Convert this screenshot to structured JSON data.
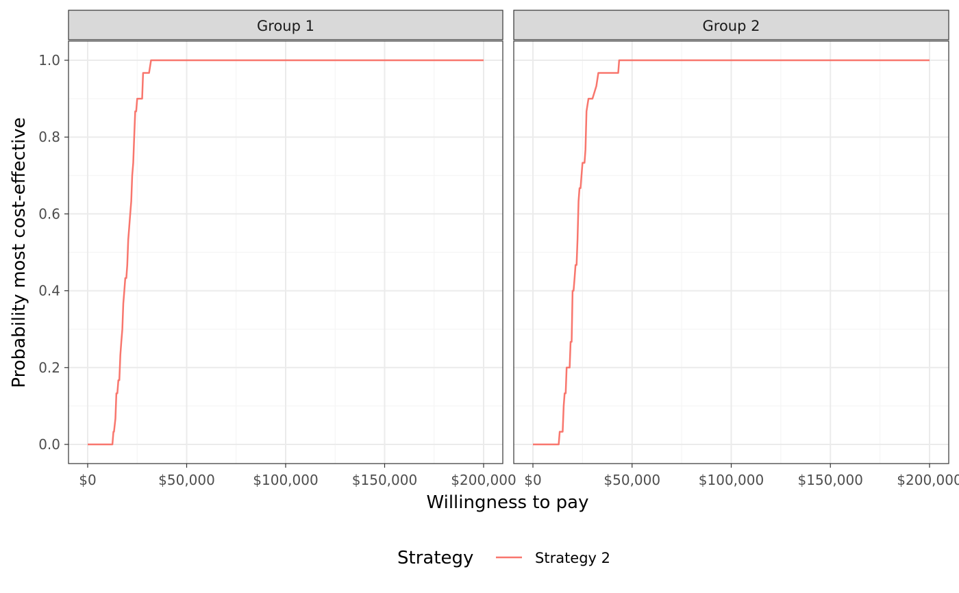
{
  "chart_data": {
    "type": "line",
    "xlabel": "Willingness to pay",
    "ylabel": "Probability most cost-effective",
    "xlim": [
      0,
      200000
    ],
    "ylim": [
      0,
      1
    ],
    "x_ticks": [
      0,
      50000,
      100000,
      150000,
      200000
    ],
    "x_tick_labels": [
      "$0",
      "$50,000",
      "$100,000",
      "$150,000",
      "$200,000"
    ],
    "y_ticks": [
      0,
      0.2,
      0.4,
      0.6,
      0.8,
      1.0
    ],
    "y_tick_labels": [
      "0.0",
      "0.2",
      "0.4",
      "0.6",
      "0.8",
      "1.0"
    ],
    "grid": true,
    "legend": {
      "title": "Strategy",
      "position": "bottom",
      "entries": [
        "Strategy 2"
      ]
    },
    "colors": {
      "series": "#f8766d",
      "strip": "#d9d9d9",
      "grid_major": "#ebebeb",
      "grid_minor": "#f5f5f5",
      "border": "#333333"
    },
    "panels": [
      {
        "title": "Group 1",
        "series": [
          {
            "name": "Strategy 2",
            "x": [
              0,
              12500,
              13000,
              13300,
              14000,
              14500,
              15000,
              15500,
              16000,
              16500,
              17000,
              17500,
              18000,
              18500,
              19000,
              19500,
              20000,
              20500,
              21000,
              21500,
              22000,
              22500,
              23000,
              23500,
              24000,
              24500,
              25000,
              25500,
              27500,
              28000,
              30000,
              31000,
              32000,
              200000
            ],
            "y": [
              0,
              0,
              0.033,
              0.033,
              0.067,
              0.133,
              0.133,
              0.167,
              0.167,
              0.233,
              0.267,
              0.3,
              0.367,
              0.4,
              0.433,
              0.433,
              0.467,
              0.533,
              0.567,
              0.6,
              0.633,
              0.7,
              0.733,
              0.8,
              0.867,
              0.867,
              0.9,
              0.9,
              0.9,
              0.967,
              0.967,
              0.967,
              1.0,
              1.0
            ]
          }
        ]
      },
      {
        "title": "Group 2",
        "series": [
          {
            "name": "Strategy 2",
            "x": [
              0,
              13000,
              13500,
              15000,
              15500,
              16000,
              16500,
              17000,
              17500,
              18500,
              19000,
              19500,
              20000,
              20500,
              21000,
              21500,
              22000,
              22500,
              23000,
              23500,
              24000,
              24500,
              25000,
              25500,
              26000,
              26500,
              27000,
              28000,
              28500,
              29000,
              30000,
              32000,
              33000,
              34000,
              36000,
              38000,
              43000,
              43500,
              200000
            ],
            "y": [
              0,
              0,
              0.033,
              0.033,
              0.1,
              0.133,
              0.133,
              0.2,
              0.2,
              0.2,
              0.267,
              0.267,
              0.4,
              0.4,
              0.433,
              0.467,
              0.467,
              0.533,
              0.633,
              0.667,
              0.667,
              0.7,
              0.733,
              0.733,
              0.733,
              0.767,
              0.867,
              0.9,
              0.9,
              0.9,
              0.9,
              0.933,
              0.967,
              0.967,
              0.967,
              0.967,
              0.967,
              1.0,
              1.0
            ]
          }
        ]
      }
    ]
  }
}
